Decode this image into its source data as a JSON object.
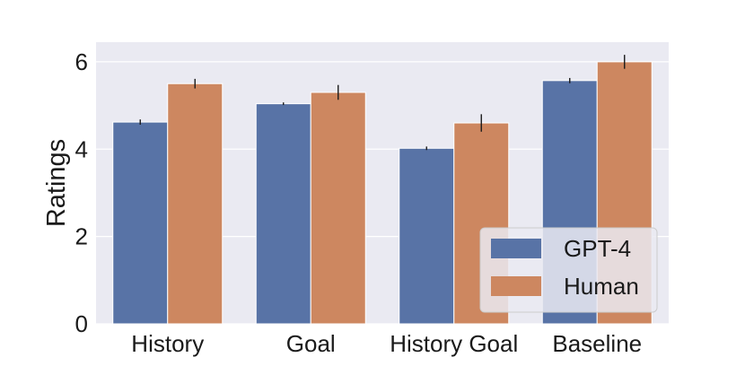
{
  "chart_data": {
    "type": "bar",
    "title": "",
    "xlabel": "",
    "ylabel": "Ratings",
    "ylim": [
      0,
      6.45
    ],
    "yticks": [
      0,
      2,
      4,
      6
    ],
    "grid": true,
    "legend_position": "bottom-right",
    "categories": [
      "History",
      "Goal",
      "History Goal",
      "Baseline"
    ],
    "series": [
      {
        "name": "GPT-4",
        "color": "#5873a6",
        "values": [
          4.62,
          5.04,
          4.02,
          5.57
        ],
        "errors": [
          0.06,
          0.03,
          0.04,
          0.06
        ]
      },
      {
        "name": "Human",
        "color": "#cd8760",
        "values": [
          5.5,
          5.3,
          4.6,
          6.0
        ],
        "errors": [
          0.11,
          0.17,
          0.2,
          0.16
        ]
      }
    ],
    "plot_background": "#eaeaf2",
    "grid_color": "#ffffff",
    "errorbar_color": "#1a1a1a"
  }
}
